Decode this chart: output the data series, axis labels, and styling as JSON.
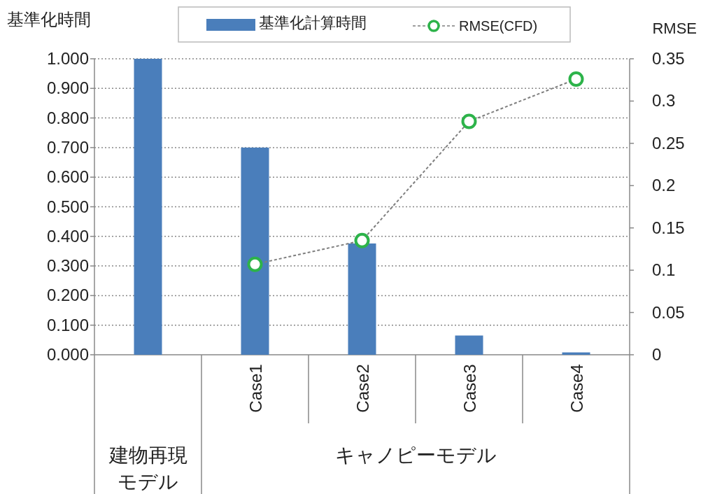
{
  "chart_data": {
    "type": "bar",
    "ylabel": "基準化時間",
    "y2label": "RMSE",
    "categories": [
      null,
      "Case1",
      "Case2",
      "Case3",
      "Case4"
    ],
    "series": [
      {
        "name": "基準化計算時間",
        "color": "#4a7ebb",
        "values": [
          1.0,
          0.7,
          0.376,
          0.065,
          0.008
        ]
      },
      {
        "name": "RMSE(CFD)",
        "type": "line",
        "axis": "y2",
        "color": "#2db34a",
        "marker": "circle",
        "line_style": "dashed",
        "values": [
          null,
          0.107,
          0.135,
          0.276,
          0.326
        ]
      }
    ],
    "ylim": [
      0,
      1
    ],
    "yticks": [
      {
        "value": 0,
        "label": "0.000"
      },
      {
        "value": 0.1,
        "label": "0.100"
      },
      {
        "value": 0.2,
        "label": "0.200"
      },
      {
        "value": 0.3,
        "label": "0.300"
      },
      {
        "value": 0.4,
        "label": "0.400"
      },
      {
        "value": 0.5,
        "label": "0.500"
      },
      {
        "value": 0.6,
        "label": "0.600"
      },
      {
        "value": 0.7,
        "label": "0.700"
      },
      {
        "value": 0.8,
        "label": "0.800"
      },
      {
        "value": 0.9,
        "label": "0.900"
      },
      {
        "value": 1,
        "label": "1.000"
      }
    ],
    "y2lim": [
      0,
      0.35
    ],
    "y2ticks": [
      0,
      0.05,
      0.1,
      0.15,
      0.2,
      0.25,
      0.3,
      0.35
    ],
    "annotations": [
      "建物再現モデル",
      "キャノピーモデル"
    ],
    "grid": "y",
    "legend": "top"
  }
}
